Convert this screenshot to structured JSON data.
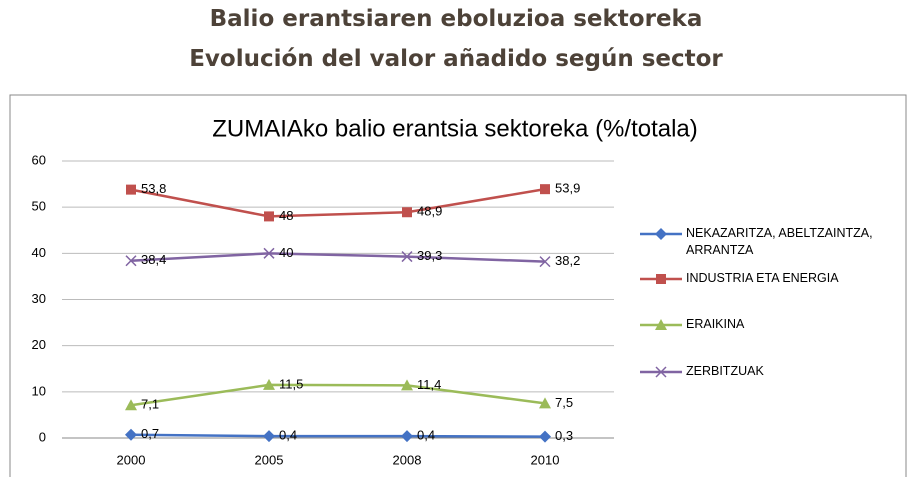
{
  "header": {
    "lines": [
      "Balio erantsiaren eboluzioa sektoreka",
      "Evolución del valor añadido según sector"
    ]
  },
  "chart_data": {
    "type": "line",
    "title": "ZUMAIAko balio erantsia sektoreka (%/totala)",
    "categories": [
      "2000",
      "2005",
      "2008",
      "2010"
    ],
    "series": [
      {
        "name": "NEKAZARITZA, ABELTZAINTZA, ARRANTZA",
        "color": "#4472c4",
        "marker": "diamond",
        "values": [
          0.7,
          0.4,
          0.4,
          0.3
        ],
        "value_labels": [
          "0,7",
          "0,4",
          "0,4",
          "0,3"
        ]
      },
      {
        "name": "INDUSTRIA ETA ENERGIA",
        "color": "#c0504d",
        "marker": "square",
        "values": [
          53.8,
          48,
          48.9,
          53.9
        ],
        "value_labels": [
          "53,8",
          "48",
          "48,9",
          "53,9"
        ]
      },
      {
        "name": "ERAIKINA",
        "color": "#9bbb59",
        "marker": "triangle",
        "values": [
          7.1,
          11.5,
          11.4,
          7.5
        ],
        "value_labels": [
          "7,1",
          "11,5",
          "11,4",
          "7,5"
        ]
      },
      {
        "name": "ZERBITZUAK",
        "color": "#8064a2",
        "marker": "x",
        "values": [
          38.4,
          40,
          39.3,
          38.2
        ],
        "value_labels": [
          "38,4",
          "40",
          "39,3",
          "38,2"
        ]
      }
    ],
    "ylim": [
      0,
      60
    ],
    "yticks": [
      0,
      10,
      20,
      30,
      40,
      50,
      60
    ],
    "grid": true,
    "legend": "right"
  }
}
